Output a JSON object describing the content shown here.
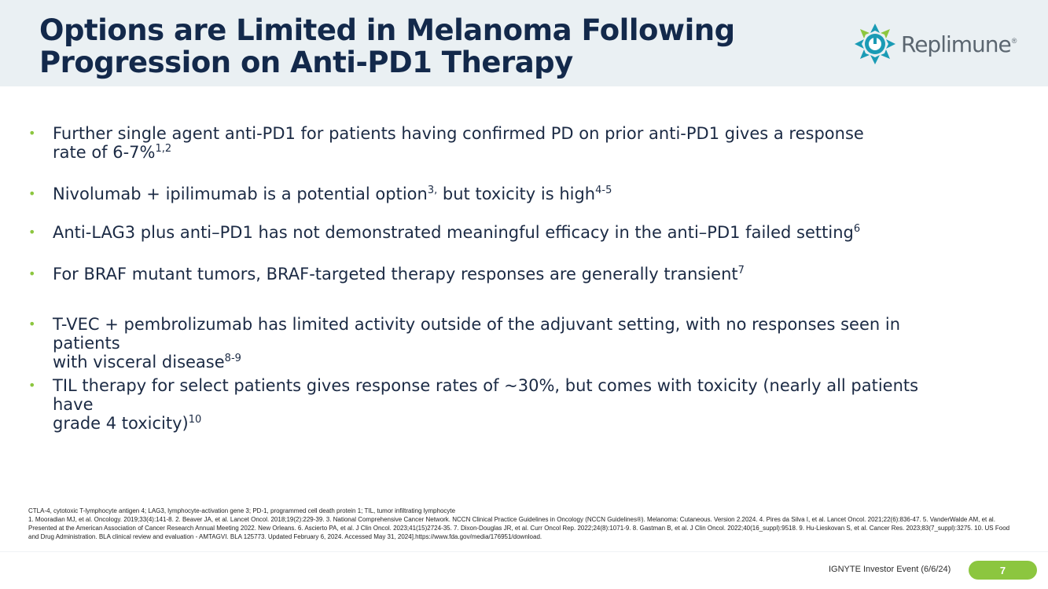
{
  "header": {
    "title_line1": "Options are Limited in Melanoma Following",
    "title_line2": "Progression on Anti-PD1 Therapy",
    "logo_text": "Replimune",
    "logo_mark": "®"
  },
  "bullet_marker": "•",
  "bullets": [
    {
      "line1": "Further single agent anti-PD1 for patients having confirmed PD on prior anti-PD1 gives a response",
      "line2": "rate of 6-7%",
      "sup": "1,2"
    },
    {
      "text": "Nivolumab + ipilimumab is a potential option",
      "sup1": "3,",
      "text2": " but toxicity is high",
      "sup2": "4-5"
    },
    {
      "text": "Anti-LAG3 plus anti–PD1 has not demonstrated meaningful efficacy in the anti–PD1 failed setting",
      "sup": "6"
    },
    {
      "text": "For BRAF mutant tumors, BRAF-targeted therapy responses are generally transient",
      "sup": "7"
    },
    {
      "line1": "T-VEC + pembrolizumab has limited activity outside of the adjuvant setting, with no responses seen in patients",
      "line2": "with visceral disease",
      "sup": "8-9"
    },
    {
      "line1": "TIL therapy for select patients gives response rates of ~30%, but comes with toxicity (nearly all patients have",
      "line2": "grade 4 toxicity)",
      "sup": "10"
    }
  ],
  "footnotes": {
    "abbreviations": "CTLA-4, cytotoxic T-lymphocyte antigen 4; LAG3, lymphocyte-activation gene 3; PD-1, programmed cell death protein 1; TIL, tumor infiltrating lymphocyte",
    "references": "1. Mooradian MJ, et al. Oncology. 2019;33(4):141-8. 2. Beaver JA, et al. Lancet Oncol. 2018;19(2):229-39. 3. National Comprehensive Cancer Network. NCCN Clinical Practice Guidelines in Oncology (NCCN Guidelines®). Melanoma: Cutaneous. Version 2.2024. 4. Pires da Silva I, et al. Lancet Oncol. 2021;22(6):836-47. 5. VanderWalde AM, et al. Presented at the American Association of Cancer Research Annual Meeting 2022. New Orleans. 6. Ascierto PA, et al. J Clin Oncol. 2023;41(15)2724-35. 7. Dixon-Douglas JR, et al. Curr Oncol Rep. 2022;24(8):1071-9. 8. Gastman B, et al. J Clin Oncol. 2022;40(16_suppl):9518. 9. Hu-Lieskovan S, et al. Cancer Res. 2023;83(7_suppl):3275. 10. US Food and Drug Administration. BLA clinical review and evaluation - AMTAGVI. BLA 125773. Updated February 6, 2024. Accessed May 31, 2024].https://www.fda.gov/media/176951/download."
  },
  "footer": {
    "event": "IGNYTE Investor Event (6/6/24)",
    "page_number": "7"
  },
  "colors": {
    "title": "#13294b",
    "header_bg": "#eaf0f3",
    "accent_green": "#8cc63f",
    "logo_teal": "#1a9bb5"
  }
}
